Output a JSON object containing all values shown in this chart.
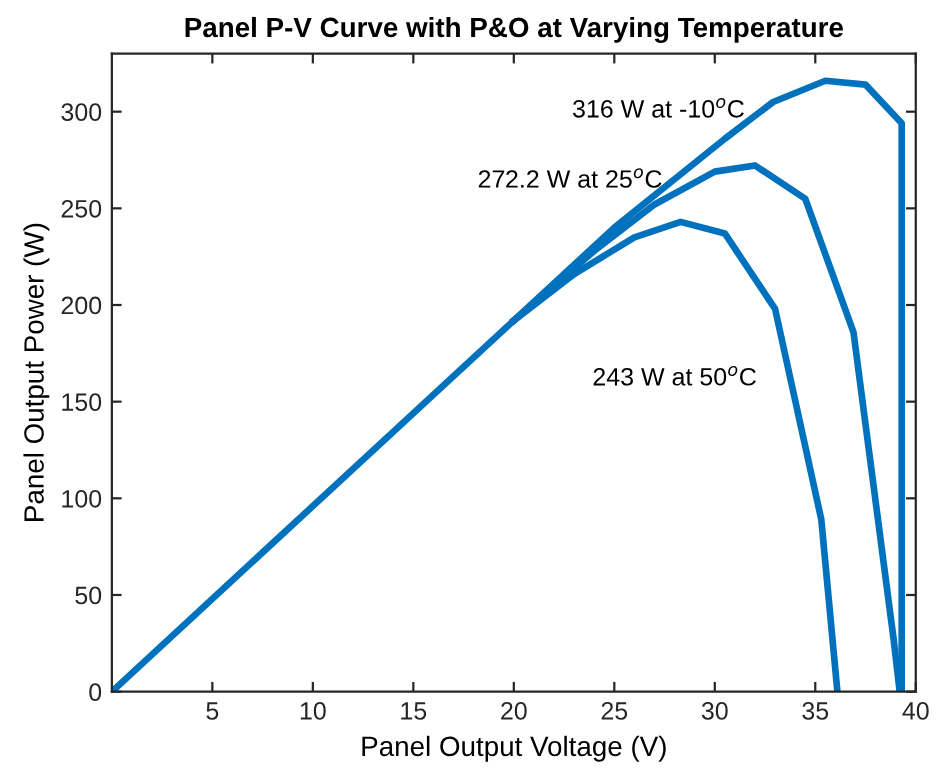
{
  "chart_data": {
    "type": "line",
    "title": "Panel P-V Curve with P&O at Varying Temperature",
    "xlabel": "Panel Output Voltage (V)",
    "ylabel": "Panel Output Power (W)",
    "series": [
      {
        "color": "#0072bd",
        "x": [
          0,
          20,
          25,
          30.5,
          32.9,
          35.5,
          37.5,
          39.3,
          39.3
        ],
        "values": [
          0,
          192,
          240,
          286,
          305,
          316,
          314,
          294,
          0
        ]
      },
      {
        "color": "#0072bd",
        "x": [
          20,
          24,
          27,
          30,
          32,
          34.5,
          36.9,
          38.9,
          39.2
        ],
        "values": [
          192,
          228,
          252,
          269,
          272.2,
          255,
          186,
          27,
          0
        ]
      },
      {
        "color": "#0072bd",
        "x": [
          20,
          23,
          26,
          28.3,
          30.5,
          33,
          35.3,
          36.1
        ],
        "values": [
          192,
          216,
          235,
          243,
          237,
          198,
          89,
          0
        ]
      }
    ],
    "annotations": [
      "316 W at -10$^{o}$C",
      "272.2 W at 25$^{o}$C",
      "243 W at 50$^{o}$C"
    ],
    "xlim": [
      0,
      40
    ],
    "ylim": [
      0,
      330
    ],
    "xticks": [
      5,
      10,
      15,
      20,
      25,
      30,
      35,
      40
    ],
    "yticks": [
      0,
      50,
      100,
      150,
      200,
      250,
      300
    ],
    "grid": false,
    "legend": false,
    "marker": "none",
    "line_style": "solid"
  }
}
